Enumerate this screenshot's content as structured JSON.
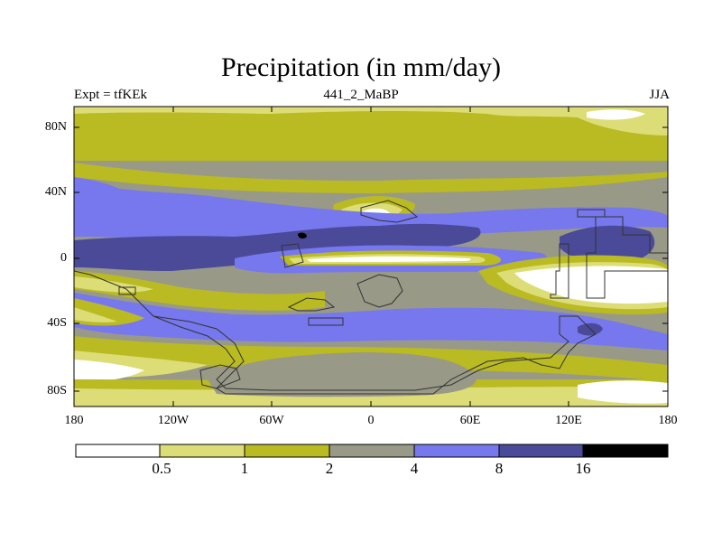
{
  "title": "Precipitation (in mm/day)",
  "subtitle_left": "Expt = tfKEk",
  "subtitle_center": "441_2_MaBP",
  "subtitle_right": "JJA",
  "map": {
    "projection": "cylindrical equidistant",
    "lon_range": [
      -180,
      180
    ],
    "lat_range": [
      -90,
      90
    ],
    "y_tick_labels": [
      "80N",
      "40N",
      "0",
      "40S",
      "80S"
    ],
    "x_tick_labels": [
      "180",
      "120W",
      "60W",
      "0",
      "60E",
      "120E",
      "180"
    ]
  },
  "colorbar": {
    "levels": [
      "0.5",
      "1",
      "2",
      "4",
      "8",
      "16"
    ],
    "colors": [
      "#ffffff",
      "#dddd77",
      "#baba22",
      "#999988",
      "#7777ee",
      "#4a4a99",
      "#000000"
    ]
  },
  "palette": {
    "white": "#ffffff",
    "light_yellow": "#dddd77",
    "olive": "#baba22",
    "gray": "#999988",
    "blue": "#7777ee",
    "dark_blue": "#4a4a99",
    "black": "#000000",
    "coastline": "#333333"
  }
}
